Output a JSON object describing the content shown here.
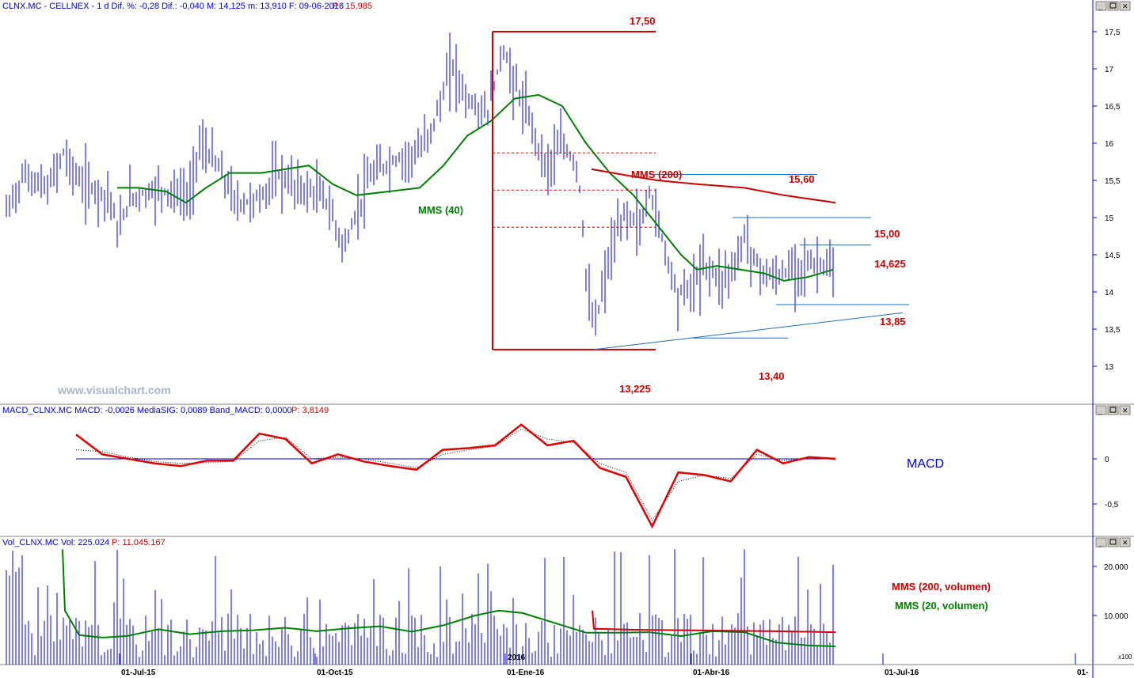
{
  "header": {
    "price": "CLNX.MC - CELLNEX -  1 d  Dif. %: -0,28  Dif.: -0,040  M: 14,125  m: 13,910  F: 09-06-2016",
    "price_p": "P : 15,985",
    "macd": "MACD_CLNX.MC  MACD: -0,0026  MediaSIG: 0,0089  Band_MACD: 0,0000",
    "macd_p": "P: 3,8149",
    "vol": "Vol_CLNX.MC  Vol: 225.024",
    "vol_p": "P: 11.045.167"
  },
  "watermark": "www.visualchart.com",
  "annotations": {
    "top": "17,50",
    "bottom": "13,225",
    "support1": "13,40",
    "support2": "13,85",
    "res1": "15,60",
    "res2": "15,00",
    "res3": "14,625",
    "mms200": "MMS (200)",
    "mms40": "MMS (40)",
    "macd": "MACD",
    "vol200": "MMS (200, volumen)",
    "vol20": "MMS (20, volumen)",
    "year": "2016",
    "x100": "x100"
  },
  "colors": {
    "bars": "#0000cc",
    "mms40": "#008000",
    "mms200": "#cc0000",
    "trend": "#1e6fb8",
    "annot": "#cc0000"
  },
  "chart_data": [
    {
      "type": "line",
      "title": "CLNX.MC - CELLNEX - 1 d",
      "x_ticks": [
        "01-Jul-15",
        "01-Oct-15",
        "01-Ene-16",
        "01-Abr-16",
        "01-Jul-16"
      ],
      "y_ticks": [
        "13",
        "13,5",
        "14",
        "14,5",
        "15",
        "15,5",
        "16",
        "16,5",
        "17",
        "17,5"
      ],
      "ylim": [
        13,
        17.5
      ],
      "series": [
        {
          "name": "Close",
          "x": [
            0,
            10,
            20,
            30,
            40,
            50,
            60,
            70,
            80,
            90,
            100,
            110,
            120,
            130,
            140,
            150,
            160,
            170,
            180,
            190,
            200,
            210,
            220,
            230,
            240,
            250,
            260
          ],
          "values": [
            15.2,
            15.5,
            15.8,
            15.5,
            15.1,
            15.2,
            15.4,
            16.1,
            15.6,
            15.4,
            15.3,
            15.5,
            14.8,
            15.3,
            15.8,
            16.0,
            16.1,
            17.1,
            16.6,
            16.4,
            17.3,
            16.8,
            16.2,
            15.6,
            15.3,
            13.6,
            14.2
          ]
        },
        {
          "name": "MMS (40)",
          "x": [
            35,
            50,
            60,
            70,
            80,
            90,
            100,
            110,
            120,
            130,
            140,
            150,
            160,
            170,
            180,
            190,
            200,
            210,
            220,
            230,
            240,
            250,
            260
          ],
          "values": [
            15.4,
            15.4,
            15.3,
            15.5,
            15.6,
            15.6,
            15.65,
            15.7,
            15.5,
            15.35,
            15.4,
            15.55,
            15.9,
            16.4,
            16.65,
            16.1,
            15.3,
            14.85,
            14.35,
            14.25,
            14.2,
            14.2,
            14.3
          ]
        },
        {
          "name": "MMS (200)",
          "x": [
            180,
            200,
            220,
            240,
            260
          ],
          "values": [
            15.65,
            15.5,
            15.45,
            15.35,
            15.2
          ]
        }
      ],
      "annotations": {
        "max": 17.5,
        "min": 13.225,
        "support": [
          13.4,
          13.85
        ],
        "resistance": [
          15.6,
          15.0,
          14.625
        ]
      }
    },
    {
      "type": "line",
      "title": "MACD_CLNX.MC",
      "y_ticks": [
        "0",
        "-0,5"
      ],
      "series": [
        {
          "name": "MACD",
          "values": [
            0.27,
            0.05,
            0.0,
            -0.05,
            -0.08,
            -0.02,
            -0.02,
            0.28,
            0.22,
            -0.05,
            0.05,
            -0.03,
            -0.08,
            -0.12,
            0.1,
            0.12,
            0.15,
            0.38,
            0.15,
            0.2,
            -0.1,
            -0.2,
            -0.75,
            -0.15,
            -0.18,
            -0.25,
            0.1,
            -0.05,
            0.02,
            0.0
          ]
        },
        {
          "name": "MediaSIG",
          "values": [
            0.1,
            0.08,
            0.02,
            -0.03,
            -0.05,
            -0.04,
            -0.03,
            0.2,
            0.24,
            0.0,
            0.02,
            0.0,
            -0.05,
            -0.1,
            0.05,
            0.1,
            0.14,
            0.33,
            0.22,
            0.18,
            -0.05,
            -0.15,
            -0.68,
            -0.25,
            -0.18,
            -0.22,
            0.05,
            -0.02,
            0.01,
            0.01
          ]
        }
      ]
    },
    {
      "type": "bar",
      "title": "Vol_CLNX.MC",
      "y_ticks": [
        "10.000",
        "20.000"
      ],
      "series": [
        {
          "name": "MMS (200, volumen)",
          "values": [
            7800,
            7700,
            7600,
            7500,
            7400
          ]
        },
        {
          "name": "MMS (20, volumen)",
          "values": [
            30000,
            9000,
            8500,
            9500,
            9000,
            10000,
            9500,
            11000,
            12500,
            11500,
            9500,
            8000,
            6000
          ]
        }
      ]
    }
  ]
}
